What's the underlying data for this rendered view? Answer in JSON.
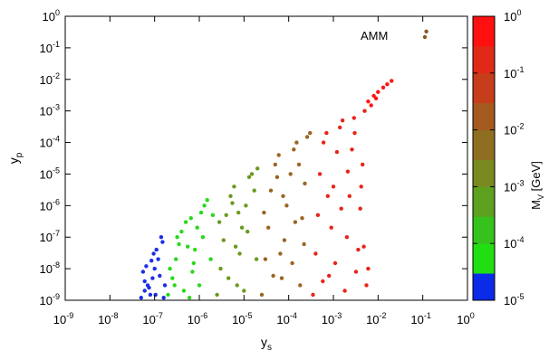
{
  "chart_data": {
    "type": "scatter",
    "xlabel": "y",
    "xlabel_sub": "s",
    "ylabel": "y",
    "ylabel_sub": "p",
    "x_scale": "log",
    "y_scale": "log",
    "xlim": [
      1e-09,
      1
    ],
    "ylim": [
      1e-09,
      1
    ],
    "x_ticks": [
      {
        "base": "10",
        "exp": "-9"
      },
      {
        "base": "10",
        "exp": "-8"
      },
      {
        "base": "10",
        "exp": "-7"
      },
      {
        "base": "10",
        "exp": "-6"
      },
      {
        "base": "10",
        "exp": "-5"
      },
      {
        "base": "10",
        "exp": "-4"
      },
      {
        "base": "10",
        "exp": "-3"
      },
      {
        "base": "10",
        "exp": "-2"
      },
      {
        "base": "10",
        "exp": "-1"
      },
      {
        "base": "10",
        "exp": "0"
      }
    ],
    "y_ticks": [
      {
        "base": "10",
        "exp": "-9"
      },
      {
        "base": "10",
        "exp": "-8"
      },
      {
        "base": "10",
        "exp": "-7"
      },
      {
        "base": "10",
        "exp": "-6"
      },
      {
        "base": "10",
        "exp": "-5"
      },
      {
        "base": "10",
        "exp": "-4"
      },
      {
        "base": "10",
        "exp": "-3"
      },
      {
        "base": "10",
        "exp": "-2"
      },
      {
        "base": "10",
        "exp": "-1"
      },
      {
        "base": "10",
        "exp": "0"
      }
    ],
    "legend": {
      "label": "AMM",
      "color": "#8b5a1e",
      "placement": "top-right"
    },
    "colorbar": {
      "label": "M",
      "label_sub": "V",
      "label_unit": " [GeV]",
      "scale": "log",
      "range": [
        1e-05,
        1
      ],
      "ticks": [
        {
          "base": "10",
          "exp": "-5"
        },
        {
          "base": "10",
          "exp": "-4"
        },
        {
          "base": "10",
          "exp": "-3"
        },
        {
          "base": "10",
          "exp": "-2"
        },
        {
          "base": "10",
          "exp": "-1"
        },
        {
          "base": "10",
          "exp": "0"
        }
      ],
      "bands": [
        {
          "from": 1e-05,
          "to": 3e-05,
          "color": "#0b2be8"
        },
        {
          "from": 3e-05,
          "to": 0.0001,
          "color": "#22dd11"
        },
        {
          "from": 0.0001,
          "to": 0.0003,
          "color": "#36c21c"
        },
        {
          "from": 0.0003,
          "to": 0.001,
          "color": "#5ea01f"
        },
        {
          "from": 0.001,
          "to": 0.003,
          "color": "#7a8a20"
        },
        {
          "from": 0.003,
          "to": 0.01,
          "color": "#8e6f21"
        },
        {
          "from": 0.01,
          "to": 0.03,
          "color": "#a45a1f"
        },
        {
          "from": 0.03,
          "to": 0.1,
          "color": "#c63d1b"
        },
        {
          "from": 0.1,
          "to": 0.3,
          "color": "#e02a17"
        },
        {
          "from": 0.3,
          "to": 1,
          "color": "#ff1010"
        }
      ]
    },
    "series": [
      {
        "description_region": "ys 4e-8..2e-7, yp 1e-9..1.5e-7",
        "color": "#1c2ee6",
        "points": [
          [
            5e-08,
            1.2e-09
          ],
          [
            6e-08,
            2e-09
          ],
          [
            7e-08,
            3e-09
          ],
          [
            8e-08,
            1.5e-09
          ],
          [
            9e-08,
            5e-09
          ],
          [
            1e-07,
            1e-08
          ],
          [
            1.2e-07,
            2e-08
          ],
          [
            5.5e-08,
            8e-09
          ],
          [
            6.5e-08,
            1.2e-08
          ],
          [
            7.5e-08,
            2.5e-09
          ],
          [
            1.1e-07,
            4e-08
          ],
          [
            1.3e-07,
            6e-09
          ],
          [
            1.5e-07,
            7e-08
          ],
          [
            8.5e-08,
            1.8e-08
          ],
          [
            9.5e-08,
            3e-08
          ],
          [
            1.4e-07,
            1e-07
          ],
          [
            1.6e-07,
            1.2e-09
          ],
          [
            1.7e-07,
            3e-09
          ],
          [
            6e-08,
            4e-09
          ],
          [
            1.05e-07,
            1.5e-09
          ]
        ]
      },
      {
        "description_region": "ys 2e-7..2e-6",
        "color": "#2ad81a",
        "points": [
          [
            2e-07,
            1.5e-09
          ],
          [
            2.5e-07,
            5e-09
          ],
          [
            3e-07,
            2e-08
          ],
          [
            3.5e-07,
            6e-08
          ],
          [
            4e-07,
            1.5e-07
          ],
          [
            5e-07,
            3e-07
          ],
          [
            6e-07,
            1.2e-09
          ],
          [
            7e-07,
            8e-09
          ],
          [
            8e-07,
            4e-08
          ],
          [
            9e-07,
            2e-07
          ],
          [
            1.1e-06,
            6e-07
          ],
          [
            1.3e-06,
            1e-06
          ],
          [
            2.2e-07,
            1e-08
          ],
          [
            2.8e-07,
            3e-09
          ],
          [
            3.2e-07,
            1e-07
          ],
          [
            4.5e-07,
            2e-09
          ],
          [
            5.5e-07,
            5e-08
          ],
          [
            6.5e-07,
            4e-07
          ],
          [
            7.5e-07,
            1.5e-08
          ],
          [
            1e-06,
            3e-09
          ],
          [
            1.2e-06,
            1e-07
          ],
          [
            1.5e-06,
            1.5e-06
          ],
          [
            1.8e-06,
            2e-08
          ],
          [
            2e-06,
            5e-07
          ]
        ]
      },
      {
        "description_region": "ys 2e-6..2e-5",
        "color": "#6a9a20",
        "points": [
          [
            2.5e-06,
            1.5e-09
          ],
          [
            3e-06,
            1e-08
          ],
          [
            3.5e-06,
            8e-08
          ],
          [
            4e-06,
            5e-07
          ],
          [
            5e-06,
            2e-06
          ],
          [
            6e-06,
            4e-06
          ],
          [
            7e-06,
            3e-09
          ],
          [
            8e-06,
            3e-08
          ],
          [
            9e-06,
            2e-07
          ],
          [
            1.1e-05,
            1e-06
          ],
          [
            1.3e-05,
            8e-06
          ],
          [
            1.5e-05,
            1e-05
          ],
          [
            2.8e-06,
            3e-07
          ],
          [
            4.5e-06,
            5e-09
          ],
          [
            5.5e-06,
            1.2e-06
          ],
          [
            6.5e-06,
            5e-08
          ],
          [
            7.5e-06,
            6e-07
          ],
          [
            1e-05,
            2e-09
          ],
          [
            1.2e-05,
            1.5e-07
          ],
          [
            1.7e-05,
            3e-06
          ],
          [
            1.9e-05,
            2e-08
          ],
          [
            2e-05,
            1.5e-05
          ]
        ]
      },
      {
        "description_region": "ys 2e-5..3e-4",
        "color": "#9a6522",
        "points": [
          [
            2.5e-05,
            1.5e-09
          ],
          [
            3e-05,
            2e-08
          ],
          [
            3.5e-05,
            2e-07
          ],
          [
            4e-05,
            3e-06
          ],
          [
            5e-05,
            2e-05
          ],
          [
            6e-05,
            4e-05
          ],
          [
            7e-05,
            5e-09
          ],
          [
            8e-05,
            8e-08
          ],
          [
            9e-05,
            1e-06
          ],
          [
            0.00011,
            1e-05
          ],
          [
            0.00013,
            6e-05
          ],
          [
            0.00015,
            0.0001
          ],
          [
            0.00018,
            3e-09
          ],
          [
            0.0002,
            4e-07
          ],
          [
            0.00023,
            5e-06
          ],
          [
            0.00026,
            0.00015
          ],
          [
            2.8e-05,
            6e-07
          ],
          [
            4.5e-05,
            6e-09
          ],
          [
            5.5e-05,
            8e-06
          ],
          [
            6.5e-05,
            3e-08
          ],
          [
            7.5e-05,
            2e-06
          ],
          [
            0.00012,
            1.5e-08
          ],
          [
            0.00014,
            3e-07
          ],
          [
            0.00017,
            2e-05
          ],
          [
            0.00022,
            6e-08
          ],
          [
            0.0003,
            0.0002
          ]
        ]
      },
      {
        "description_region": "ys 3e-4..6e-3",
        "color": "#e8241a",
        "points": [
          [
            0.00035,
            1.5e-09
          ],
          [
            0.0004,
            3e-08
          ],
          [
            0.00045,
            5e-07
          ],
          [
            0.0005,
            1e-05
          ],
          [
            0.0006,
            0.0001
          ],
          [
            0.0007,
            0.0002
          ],
          [
            0.0008,
            6e-09
          ],
          [
            0.0009,
            2e-07
          ],
          [
            0.001,
            4e-06
          ],
          [
            0.0012,
            5e-05
          ],
          [
            0.0014,
            0.0003
          ],
          [
            0.0016,
            0.0005
          ],
          [
            0.0018,
            2e-09
          ],
          [
            0.002,
            1e-07
          ],
          [
            0.0023,
            2e-06
          ],
          [
            0.0026,
            6e-05
          ],
          [
            0.0029,
            0.0006
          ],
          [
            0.0032,
            8e-09
          ],
          [
            0.0036,
            4e-08
          ],
          [
            0.004,
            8e-07
          ],
          [
            0.0045,
            2e-05
          ],
          [
            0.005,
            0.001
          ],
          [
            0.0055,
            3e-09
          ],
          [
            0.006,
            1e-08
          ],
          [
            0.00058,
            4e-09
          ],
          [
            0.00075,
            2e-06
          ],
          [
            0.0011,
            1.5e-08
          ],
          [
            0.0015,
            8e-07
          ],
          [
            0.0021,
            1.2e-05
          ],
          [
            0.003,
            0.0002
          ],
          [
            0.0042,
            4e-06
          ],
          [
            0.0048,
            5e-08
          ]
        ]
      },
      {
        "description_region": "tail toward upper right",
        "color": "#ff1414",
        "points": [
          [
            0.006,
            0.002
          ],
          [
            0.008,
            0.003
          ],
          [
            0.01,
            0.004
          ],
          [
            0.013,
            0.0055
          ],
          [
            0.016,
            0.007
          ],
          [
            0.02,
            0.009
          ],
          [
            0.007,
            0.0015
          ],
          [
            0.009,
            0.0025
          ]
        ]
      }
    ],
    "amm_point": {
      "x": 0.12,
      "y": 0.33
    }
  }
}
